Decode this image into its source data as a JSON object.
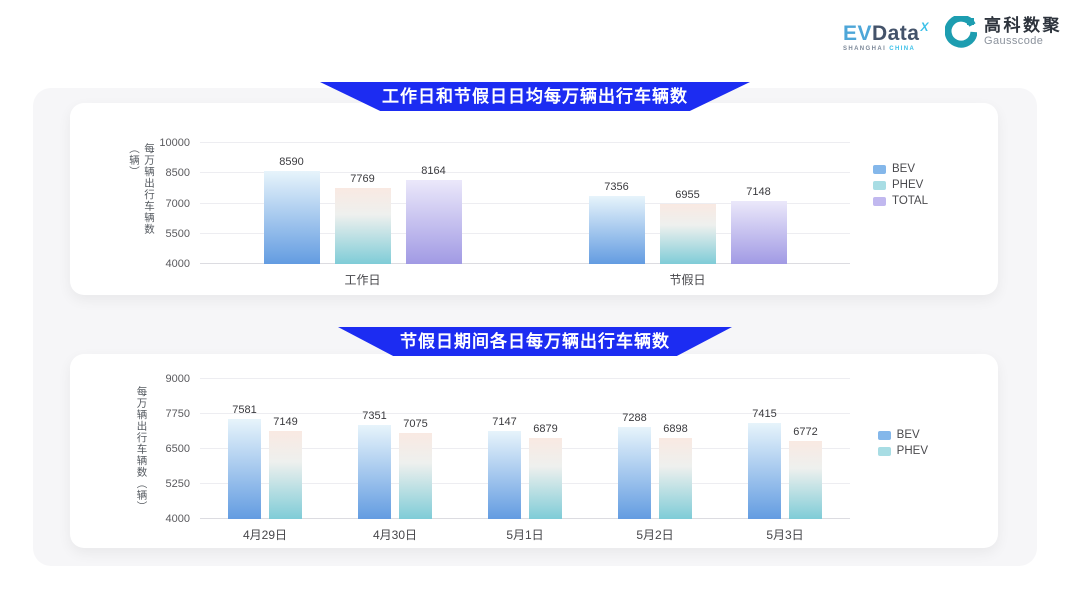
{
  "header": {
    "evdata": {
      "ev": "EV",
      "data": "Data",
      "sup": "X",
      "sub_left": "SHANGHAI",
      "sub_right": "CHINA"
    },
    "gausscode": {
      "cn": "高科数聚",
      "en": "Gausscode"
    }
  },
  "colors": {
    "banner_blue": "#1c2cf2",
    "panel_gray": "#f6f6f8",
    "gausscode_teal": "#1d9db0",
    "series": {
      "BEV": {
        "stops": [
          "#e7f4fb 0%",
          "#639ce1 100%"
        ],
        "legend": "#84b7ea"
      },
      "PHEV": {
        "stops": [
          "#f9e9e2 0%",
          "#eef0ee 35%",
          "#7fccd7 100%"
        ],
        "legend": "#a8dde4"
      },
      "TOTAL": {
        "stops": [
          "#ebe8fa 0%",
          "#a19ae4 100%"
        ],
        "legend": "#c1b8ef"
      }
    }
  },
  "chart_data": [
    {
      "type": "bar",
      "title": "工作日和节假日日均每万辆出行车辆数",
      "ylabel": "每万辆出行车辆数（辆）",
      "ymin": 4000,
      "ymax": 10000,
      "yticks": [
        10000,
        8500,
        7000,
        5500,
        4000
      ],
      "grid": true,
      "legend_position": "right",
      "categories": [
        "工作日",
        "节假日"
      ],
      "series": [
        {
          "name": "BEV",
          "values": [
            8590,
            7356
          ]
        },
        {
          "name": "PHEV",
          "values": [
            7769,
            6955
          ]
        },
        {
          "name": "TOTAL",
          "values": [
            8164,
            7148
          ]
        }
      ]
    },
    {
      "type": "bar",
      "title": "节假日期间各日每万辆出行车辆数",
      "ylabel": "每万辆出行车辆数（辆）",
      "ymin": 4000,
      "ymax": 9000,
      "yticks": [
        9000,
        7750,
        6500,
        5250,
        4000
      ],
      "grid": true,
      "legend_position": "right",
      "categories": [
        "4月29日",
        "4月30日",
        "5月1日",
        "5月2日",
        "5月3日"
      ],
      "series": [
        {
          "name": "BEV",
          "values": [
            7581,
            7351,
            7147,
            7288,
            7415
          ]
        },
        {
          "name": "PHEV",
          "values": [
            7149,
            7075,
            6879,
            6898,
            6772
          ]
        }
      ]
    }
  ]
}
